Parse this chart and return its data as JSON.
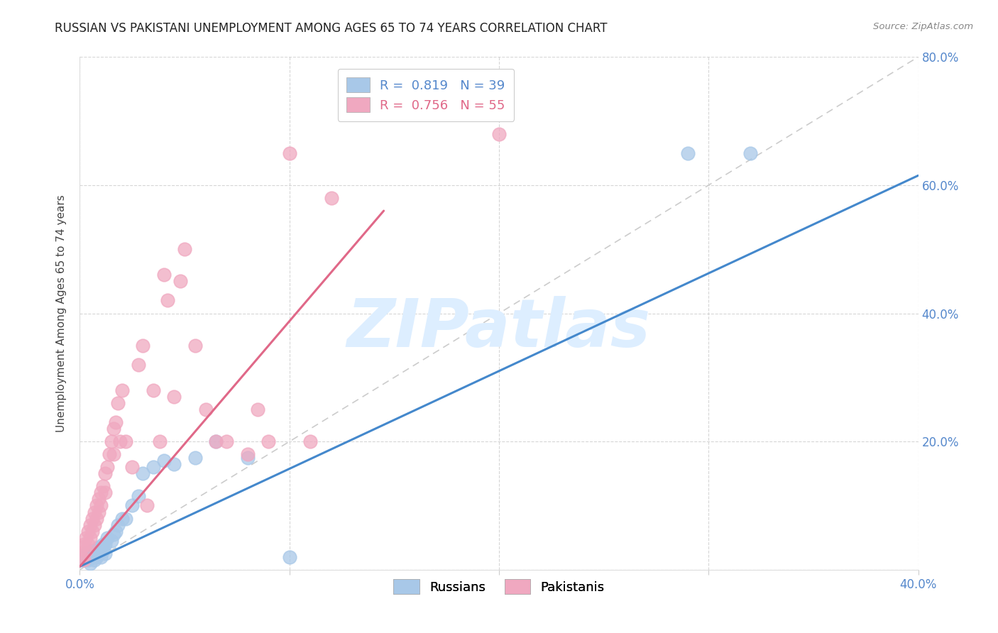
{
  "title": "RUSSIAN VS PAKISTANI UNEMPLOYMENT AMONG AGES 65 TO 74 YEARS CORRELATION CHART",
  "source": "Source: ZipAtlas.com",
  "ylabel": "Unemployment Among Ages 65 to 74 years",
  "xlim": [
    0.0,
    0.4
  ],
  "ylim": [
    0.0,
    0.8
  ],
  "xticks": [
    0.0,
    0.1,
    0.2,
    0.3,
    0.4
  ],
  "yticks": [
    0.0,
    0.2,
    0.4,
    0.6,
    0.8
  ],
  "xtick_labels": [
    "0.0%",
    "",
    "",
    "",
    "40.0%"
  ],
  "ytick_labels_right": [
    "",
    "20.0%",
    "40.0%",
    "60.0%",
    "80.0%"
  ],
  "russian_R": 0.819,
  "russian_N": 39,
  "pakistani_R": 0.756,
  "pakistani_N": 55,
  "russian_color": "#a8c8e8",
  "pakistani_color": "#f0a8c0",
  "russian_line_color": "#4488cc",
  "pakistani_line_color": "#e06888",
  "watermark_color": "#ddeeff",
  "title_fontsize": 12,
  "axis_label_fontsize": 11,
  "tick_fontsize": 12,
  "legend_fontsize": 13,
  "russian_scatter_x": [
    0.001,
    0.002,
    0.003,
    0.004,
    0.005,
    0.005,
    0.006,
    0.006,
    0.007,
    0.007,
    0.008,
    0.008,
    0.009,
    0.009,
    0.01,
    0.01,
    0.011,
    0.011,
    0.012,
    0.012,
    0.013,
    0.015,
    0.016,
    0.017,
    0.018,
    0.02,
    0.022,
    0.025,
    0.028,
    0.03,
    0.035,
    0.04,
    0.045,
    0.055,
    0.065,
    0.08,
    0.1,
    0.29,
    0.32
  ],
  "russian_scatter_y": [
    0.015,
    0.02,
    0.025,
    0.015,
    0.025,
    0.01,
    0.03,
    0.02,
    0.025,
    0.015,
    0.03,
    0.02,
    0.035,
    0.025,
    0.035,
    0.02,
    0.04,
    0.03,
    0.04,
    0.025,
    0.05,
    0.045,
    0.055,
    0.06,
    0.07,
    0.08,
    0.08,
    0.1,
    0.115,
    0.15,
    0.16,
    0.17,
    0.165,
    0.175,
    0.2,
    0.175,
    0.02,
    0.65,
    0.65
  ],
  "pakistani_scatter_x": [
    0.001,
    0.001,
    0.002,
    0.002,
    0.003,
    0.003,
    0.004,
    0.004,
    0.005,
    0.005,
    0.006,
    0.006,
    0.007,
    0.007,
    0.008,
    0.008,
    0.009,
    0.009,
    0.01,
    0.01,
    0.011,
    0.012,
    0.012,
    0.013,
    0.014,
    0.015,
    0.016,
    0.016,
    0.017,
    0.018,
    0.019,
    0.02,
    0.022,
    0.025,
    0.028,
    0.03,
    0.032,
    0.035,
    0.038,
    0.04,
    0.042,
    0.045,
    0.048,
    0.05,
    0.055,
    0.06,
    0.065,
    0.07,
    0.08,
    0.085,
    0.09,
    0.1,
    0.11,
    0.12,
    0.2
  ],
  "pakistani_scatter_y": [
    0.02,
    0.035,
    0.04,
    0.015,
    0.05,
    0.03,
    0.06,
    0.04,
    0.07,
    0.05,
    0.08,
    0.06,
    0.09,
    0.07,
    0.1,
    0.08,
    0.11,
    0.09,
    0.12,
    0.1,
    0.13,
    0.15,
    0.12,
    0.16,
    0.18,
    0.2,
    0.22,
    0.18,
    0.23,
    0.26,
    0.2,
    0.28,
    0.2,
    0.16,
    0.32,
    0.35,
    0.1,
    0.28,
    0.2,
    0.46,
    0.42,
    0.27,
    0.45,
    0.5,
    0.35,
    0.25,
    0.2,
    0.2,
    0.18,
    0.25,
    0.2,
    0.65,
    0.2,
    0.58,
    0.68
  ],
  "russian_trend_x": [
    0.0,
    0.4
  ],
  "russian_trend_y": [
    0.005,
    0.615
  ],
  "pakistani_trend_x": [
    0.0,
    0.145
  ],
  "pakistani_trend_y": [
    0.005,
    0.56
  ],
  "background_color": "#ffffff"
}
